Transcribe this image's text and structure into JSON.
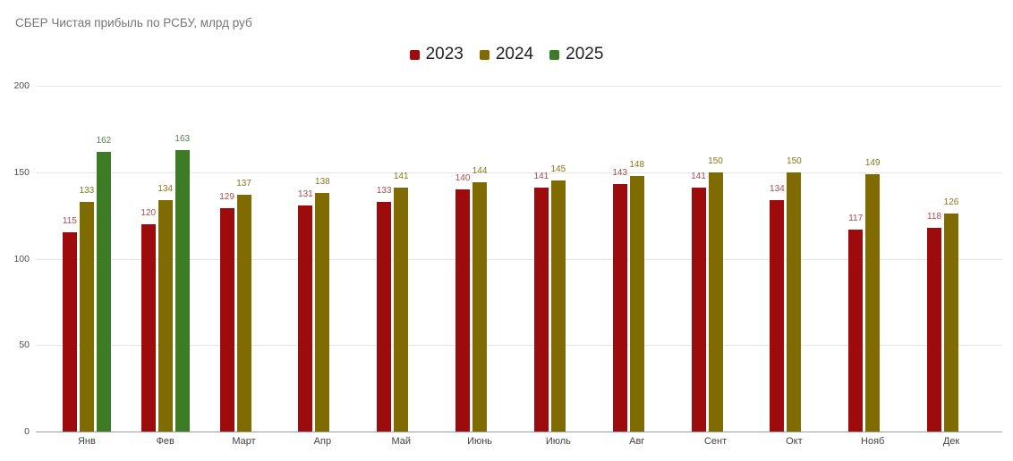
{
  "chart_data": {
    "type": "bar",
    "title": "СБЕР Чистая прибыль по РСБУ, млрд руб",
    "xlabel": "",
    "ylabel": "",
    "categories": [
      "Янв",
      "Фев",
      "Март",
      "Апр",
      "Май",
      "Июнь",
      "Июль",
      "Авг",
      "Сент",
      "Окт",
      "Нояб",
      "Дек"
    ],
    "series": [
      {
        "name": "2023",
        "color": "#9E0B0D",
        "label_color": "#A84A50",
        "values": [
          115,
          120,
          129,
          131,
          133,
          140,
          141,
          143,
          141,
          134,
          117,
          118
        ]
      },
      {
        "name": "2024",
        "color": "#7F6B00",
        "label_color": "#8A7616",
        "values": [
          133,
          134,
          137,
          138,
          141,
          144,
          145,
          148,
          150,
          150,
          149,
          126
        ]
      },
      {
        "name": "2025",
        "color": "#3E7B26",
        "label_color": "#55814A",
        "values": [
          162,
          163,
          null,
          null,
          null,
          null,
          null,
          null,
          null,
          null,
          null,
          null
        ]
      }
    ],
    "ylim": [
      0,
      200
    ],
    "yticks": [
      0,
      50,
      100,
      150,
      200
    ],
    "grid": true,
    "legend_position": "top-center",
    "colors": {
      "gridline": "#e6e6e6",
      "baseline": "#9e9e9e",
      "title_text": "#757575",
      "axis_text": "#424242",
      "legend_text": "#202124"
    }
  }
}
